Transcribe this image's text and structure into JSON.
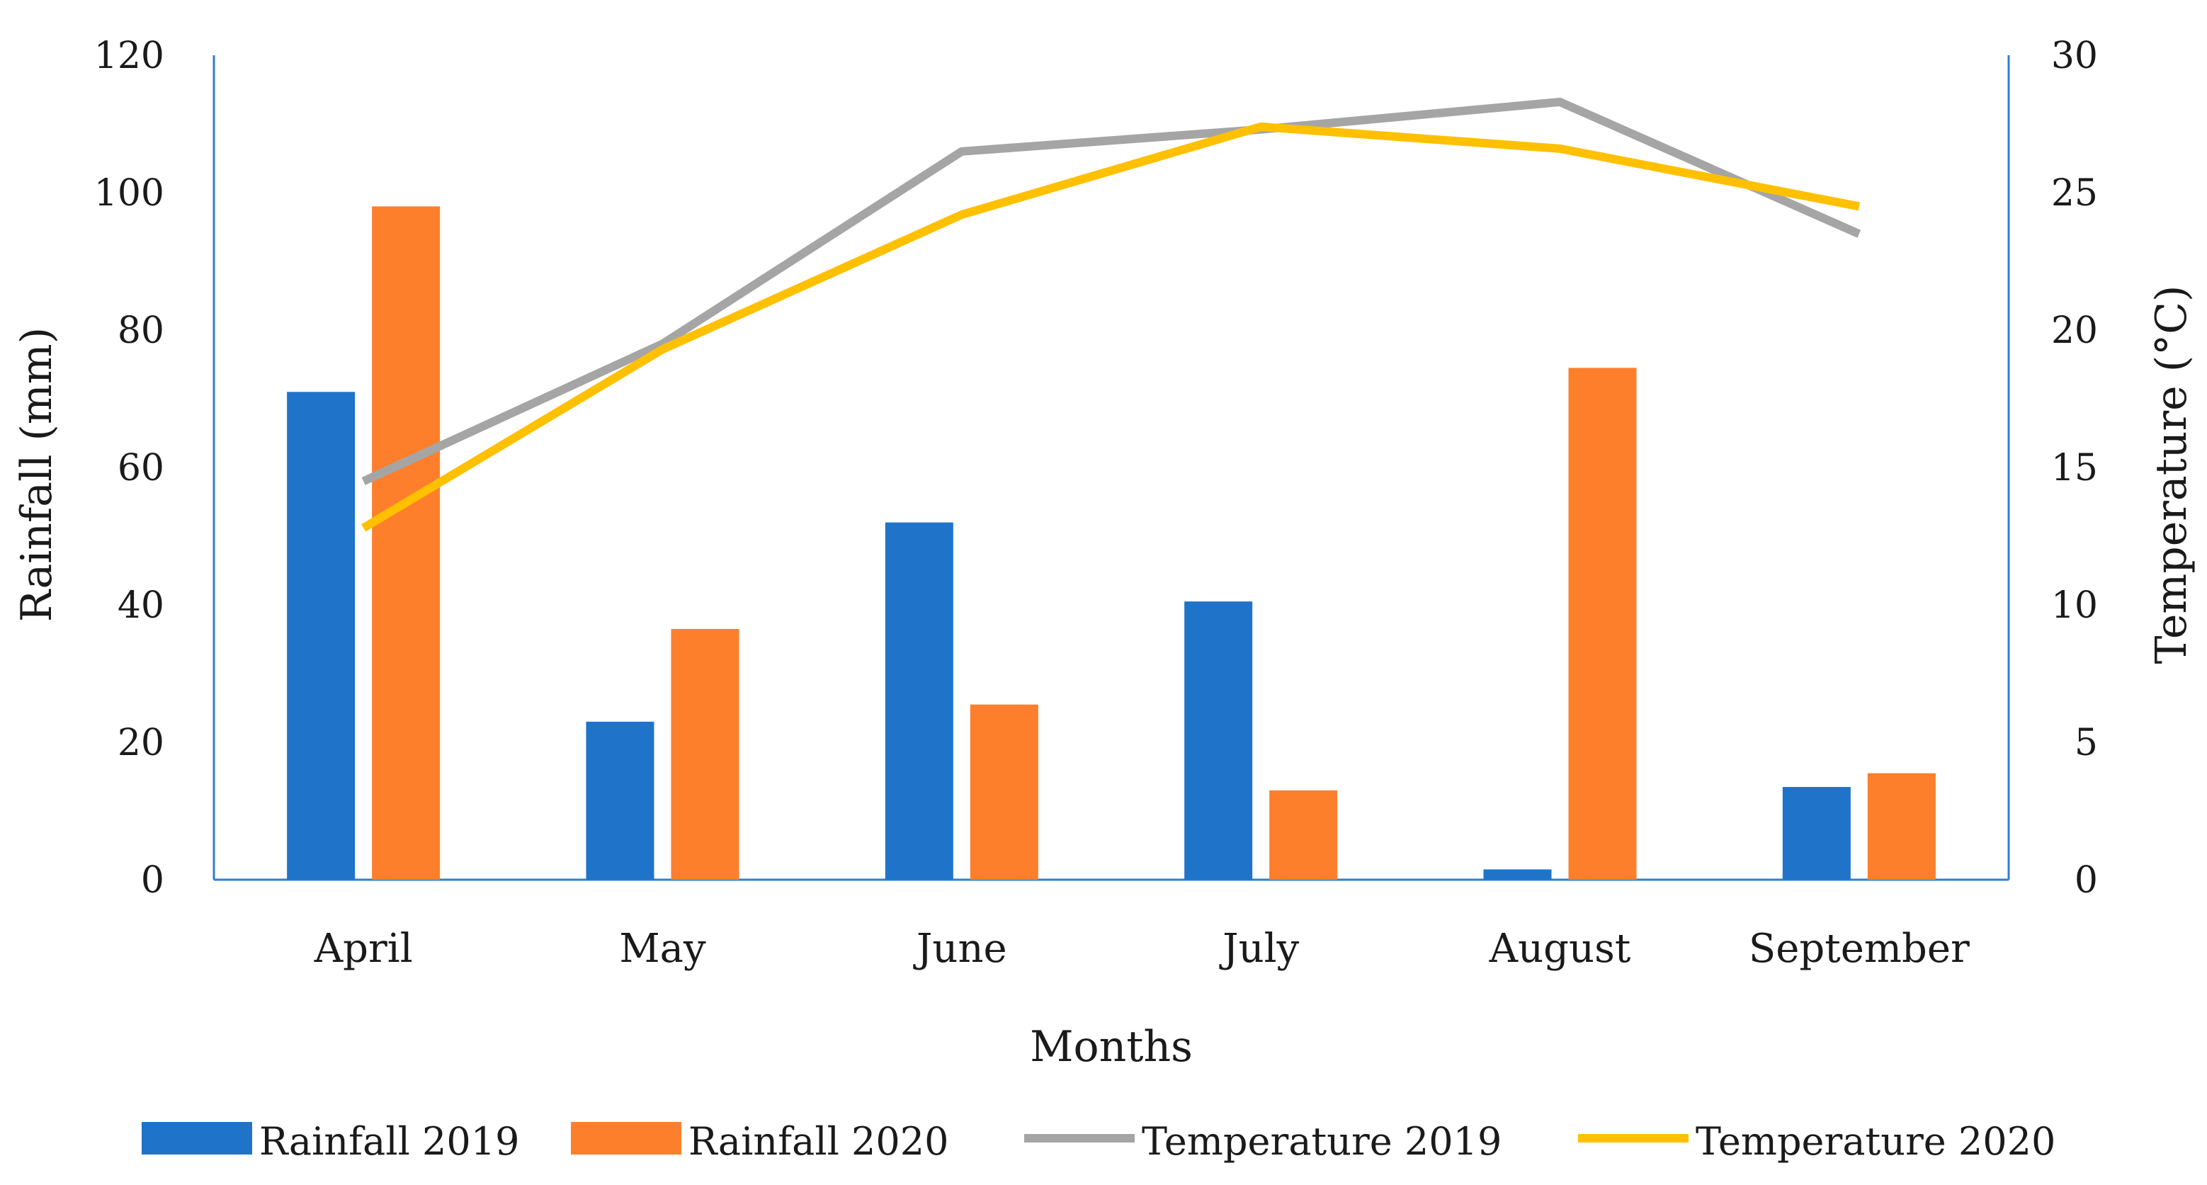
{
  "chart_data": {
    "type": "bar",
    "title": "",
    "categories": [
      "April",
      "May",
      "June",
      "July",
      "August",
      "September"
    ],
    "xlabel": "Months",
    "ylabel": "Rainfall  (mm)",
    "y2label": "Temperature (°C)",
    "ylim": [
      0,
      120
    ],
    "y2lim": [
      0,
      30
    ],
    "yticks": [
      "0",
      "20",
      "40",
      "60",
      "80",
      "100",
      "120"
    ],
    "y2ticks": [
      "0",
      "5",
      "10",
      "15",
      "20",
      "25",
      "30"
    ],
    "grid": false,
    "legend_position": "bottom",
    "series": [
      {
        "name": "Rainfall 2019",
        "type": "bar",
        "axis": "left",
        "color": "#1f74c9",
        "values": [
          71,
          23,
          52,
          40.5,
          1.5,
          13.5
        ]
      },
      {
        "name": "Rainfall 2020",
        "type": "bar",
        "axis": "left",
        "color": "#fd7f2c",
        "values": [
          98,
          36.5,
          25.5,
          13,
          74.5,
          15.5
        ]
      },
      {
        "name": "Temperature 2019",
        "type": "line",
        "axis": "right",
        "color": "#a5a5a5",
        "values": [
          14.5,
          19.5,
          26.5,
          27.3,
          28.3,
          23.5
        ]
      },
      {
        "name": "Temperature 2020",
        "type": "line",
        "axis": "right",
        "color": "#ffc000",
        "values": [
          12.8,
          19.3,
          24.2,
          27.4,
          26.6,
          24.5
        ]
      }
    ],
    "axis_color": "#2f7fd0"
  }
}
